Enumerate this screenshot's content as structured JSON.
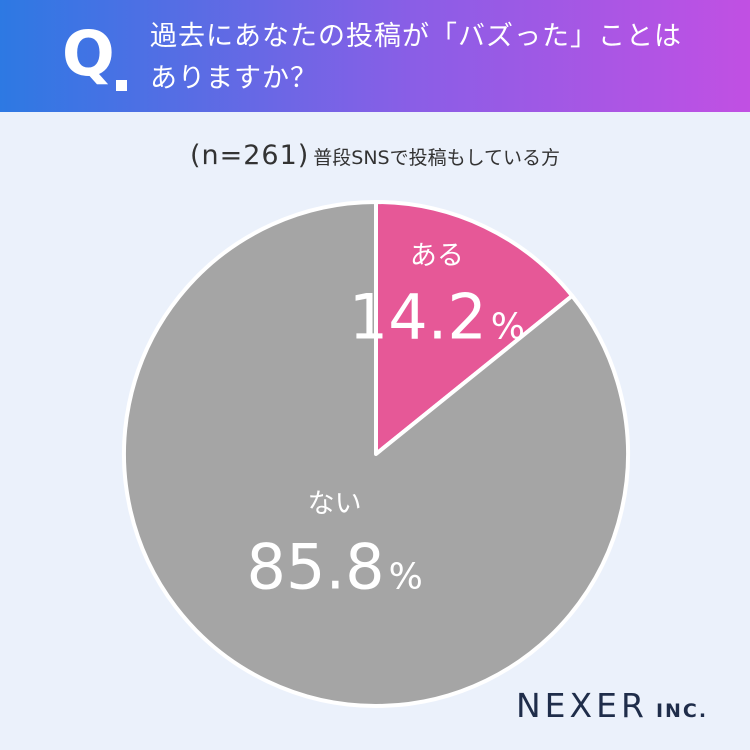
{
  "header": {
    "q_label": "Q",
    "question_line1": "過去にあなたの投稿が「バズった」ことは",
    "question_line2": "ありますか？"
  },
  "sample": {
    "n_label": "(n=261)",
    "description": "普段SNSで投稿もしている方"
  },
  "chart_data": {
    "type": "pie",
    "categories": [
      "ある",
      "ない"
    ],
    "values": [
      14.2,
      85.8
    ],
    "value_suffix": "%",
    "colors": [
      "#e65897",
      "#a5a5a5"
    ],
    "start": "12 o'clock, clockwise"
  },
  "logo": {
    "main": "NEXER",
    "sub": "INC."
  }
}
